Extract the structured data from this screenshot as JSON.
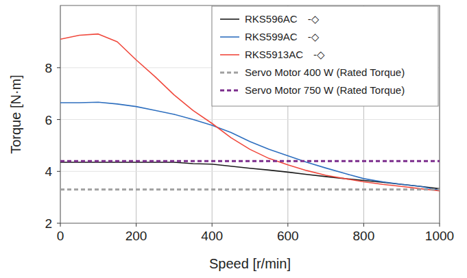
{
  "chart_data": {
    "type": "line",
    "x_label": "Speed [r/min]",
    "y_label": "Torque [N·m]",
    "x": [
      0,
      50,
      100,
      150,
      200,
      250,
      300,
      350,
      400,
      450,
      500,
      550,
      600,
      650,
      700,
      750,
      800,
      850,
      900,
      950,
      1000
    ],
    "series": [
      {
        "name": "RKS596AC　-◇",
        "color": "#1a1a1a",
        "line_style": "solid",
        "values": [
          4.35,
          4.35,
          4.35,
          4.35,
          4.35,
          4.35,
          4.35,
          4.3,
          4.28,
          4.2,
          4.12,
          4.05,
          3.97,
          3.88,
          3.8,
          3.72,
          3.65,
          3.58,
          3.5,
          3.42,
          3.33
        ]
      },
      {
        "name": "RKS599AC　-◇",
        "color": "#2e6fbf",
        "line_style": "solid",
        "values": [
          6.65,
          6.65,
          6.67,
          6.6,
          6.5,
          6.35,
          6.2,
          6.0,
          5.78,
          5.5,
          5.15,
          4.85,
          4.6,
          4.35,
          4.13,
          3.92,
          3.72,
          3.6,
          3.5,
          3.42,
          3.27
        ]
      },
      {
        "name": "RKS5913AC　-◇",
        "color": "#f0483c",
        "line_style": "solid",
        "values": [
          9.1,
          9.25,
          9.3,
          9.0,
          8.3,
          7.65,
          6.95,
          6.35,
          5.85,
          5.3,
          4.85,
          4.5,
          4.25,
          4.03,
          3.85,
          3.72,
          3.6,
          3.5,
          3.42,
          3.33,
          3.25
        ]
      },
      {
        "name": "Servo Motor 400 W (Rated Torque)",
        "color": "#a0a0a0",
        "line_style": "dashed",
        "values": [
          3.3,
          3.3,
          3.3,
          3.3,
          3.3,
          3.3,
          3.3,
          3.3,
          3.3,
          3.3,
          3.3,
          3.3,
          3.3,
          3.3,
          3.3,
          3.3,
          3.3,
          3.3,
          3.3,
          3.3,
          3.3
        ]
      },
      {
        "name": "Servo Motor 750 W (Rated Torque)",
        "color": "#7b2c8c",
        "line_style": "dashed",
        "values": [
          4.4,
          4.4,
          4.4,
          4.4,
          4.4,
          4.4,
          4.4,
          4.4,
          4.4,
          4.4,
          4.4,
          4.4,
          4.4,
          4.4,
          4.4,
          4.4,
          4.4,
          4.4,
          4.4,
          4.4,
          4.4
        ]
      }
    ],
    "xlim": [
      0,
      1000
    ],
    "xticks": [
      0,
      200,
      400,
      600,
      800,
      1000
    ],
    "ylim": [
      2,
      10.4
    ],
    "yticks": [
      2,
      4,
      6,
      8
    ],
    "grid": true,
    "legend": "upper right"
  }
}
